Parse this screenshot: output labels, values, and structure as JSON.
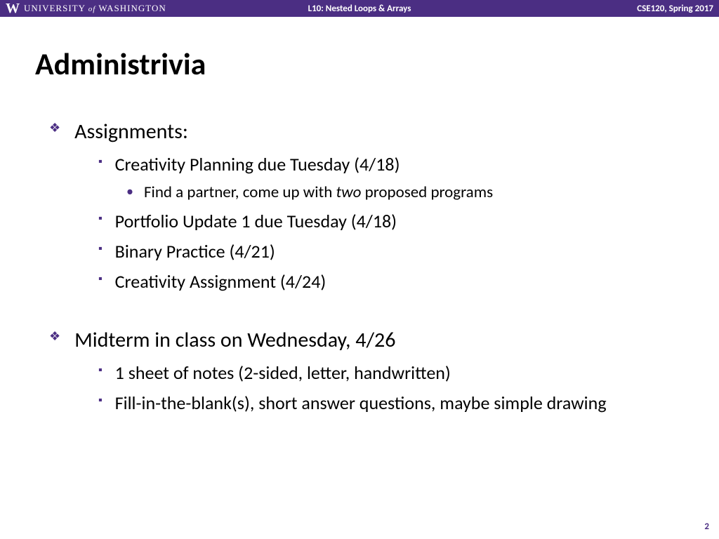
{
  "colors": {
    "brand": "#4b2e83",
    "text": "#000000",
    "bg": "#ffffff"
  },
  "header": {
    "logo_letter": "W",
    "university_1": "UNIVERSITY",
    "university_of": "of",
    "university_2": "WASHINGTON",
    "center": "L10:  Nested Loops & Arrays",
    "right": "CSE120, Spring 2017"
  },
  "title": "Administrivia",
  "sections": [
    {
      "l1": "Assignments:",
      "items": [
        {
          "l2": "Creativity Planning due Tuesday (4/18)",
          "subs": [
            {
              "pre": "Find a partner, come up with ",
              "em": "two",
              "post": " proposed programs"
            }
          ]
        },
        {
          "l2": "Portfolio Update 1 due Tuesday (4/18)"
        },
        {
          "l2": "Binary Practice (4/21)"
        },
        {
          "l2": "Creativity Assignment (4/24)"
        }
      ]
    },
    {
      "l1": "Midterm in class on Wednesday, 4/26",
      "items": [
        {
          "l2": "1 sheet of notes (2-sided, letter, handwritten)"
        },
        {
          "l2": "Fill-in-the-blank(s), short answer questions, maybe simple drawing"
        }
      ]
    }
  ],
  "page_number": "2"
}
